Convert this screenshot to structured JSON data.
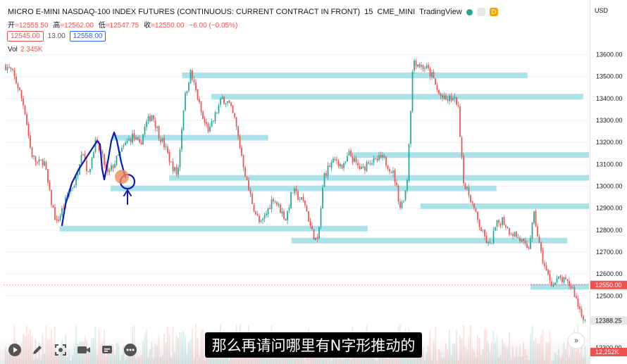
{
  "header": {
    "title": "MICRO E-MINI NASDAQ-100 INDEX FUTURES (CONTINUOUS: CURRENT CONTRACT IN FRONT)",
    "interval": "15",
    "exchange": "CME_MINI",
    "brand": "TradingView",
    "badge": "D"
  },
  "ohlc": {
    "open_label": "开",
    "open": "=12555.50",
    "high_label": "高",
    "high": "=12562.00",
    "low_label": "低",
    "low": "=12547.75",
    "close_label": "收",
    "close": "=12550.00",
    "change": "−6.00 (−0.05%)"
  },
  "price_boxes": {
    "bid": "12545.00",
    "spread": "13.00",
    "ask": "12558.00"
  },
  "volume": {
    "label": "Vol",
    "value": "2.345K"
  },
  "axis": {
    "currency": "USD"
  },
  "subtitle": "那么再请问哪里有N字形推动的",
  "colors": {
    "up": "#26a69a",
    "down": "#ef5350",
    "zone": "#a7dfe8",
    "drawing": "#0d1ab8",
    "marker": "#f08a5a"
  },
  "controls": [
    "play-icon",
    "pen-icon",
    "fullscreen-icon",
    "camera-icon",
    "caption-icon",
    "more-icon"
  ],
  "chart_data": {
    "type": "candlestick",
    "ylim": [
      12190,
      13720
    ],
    "yticks": [
      13600,
      13500,
      13400,
      13300,
      13200,
      13100,
      13000,
      12900,
      12800,
      12700,
      12600,
      12500
    ],
    "axis_labels": {
      "last_price": "12550.00",
      "current": "12388.25",
      "volume_last": "12,252K",
      "partial": "12300.00"
    },
    "last_price": 12550,
    "close_path": [
      13550,
      13520,
      13450,
      13350,
      13150,
      13100,
      13120,
      12950,
      12830,
      12900,
      12980,
      13020,
      13180,
      13050,
      13200,
      13150,
      13050,
      13100,
      13150,
      13200,
      13230,
      13180,
      13280,
      13330,
      13240,
      13180,
      13100,
      13050,
      13380,
      13520,
      13420,
      13300,
      13250,
      13330,
      13400,
      13380,
      13300,
      13150,
      13000,
      12900,
      12820,
      12880,
      12950,
      12900,
      12850,
      12980,
      12950,
      12920,
      12800,
      12740,
      13050,
      13100,
      13120,
      13080,
      13150,
      13100,
      13070,
      13120,
      13110,
      13130,
      13100,
      13050,
      12900,
      13000,
      13580,
      13550,
      13540,
      13500,
      13420,
      13390,
      13400,
      13380,
      13000,
      12950,
      12850,
      12780,
      12720,
      12820,
      12850,
      12800,
      12780,
      12750,
      12700,
      12870,
      12700,
      12600,
      12550,
      12580,
      12560,
      12540,
      12450,
      12388
    ],
    "zones": [
      {
        "price": 13505,
        "from": 0.305,
        "to": 0.895
      },
      {
        "price": 13408,
        "from": 0.355,
        "to": 0.99
      },
      {
        "price": 13221,
        "from": 0.185,
        "to": 0.452
      },
      {
        "price": 13142,
        "from": 0.598,
        "to": 1.0
      },
      {
        "price": 13038,
        "from": 0.283,
        "to": 1.0
      },
      {
        "price": 12990,
        "from": 0.183,
        "to": 0.842
      },
      {
        "price": 12909,
        "from": 0.712,
        "to": 1.0
      },
      {
        "price": 12807,
        "from": 0.096,
        "to": 0.622
      },
      {
        "price": 12752,
        "from": 0.492,
        "to": 0.963
      },
      {
        "price": 12542,
        "from": 0.9,
        "to": 1.0
      }
    ]
  }
}
